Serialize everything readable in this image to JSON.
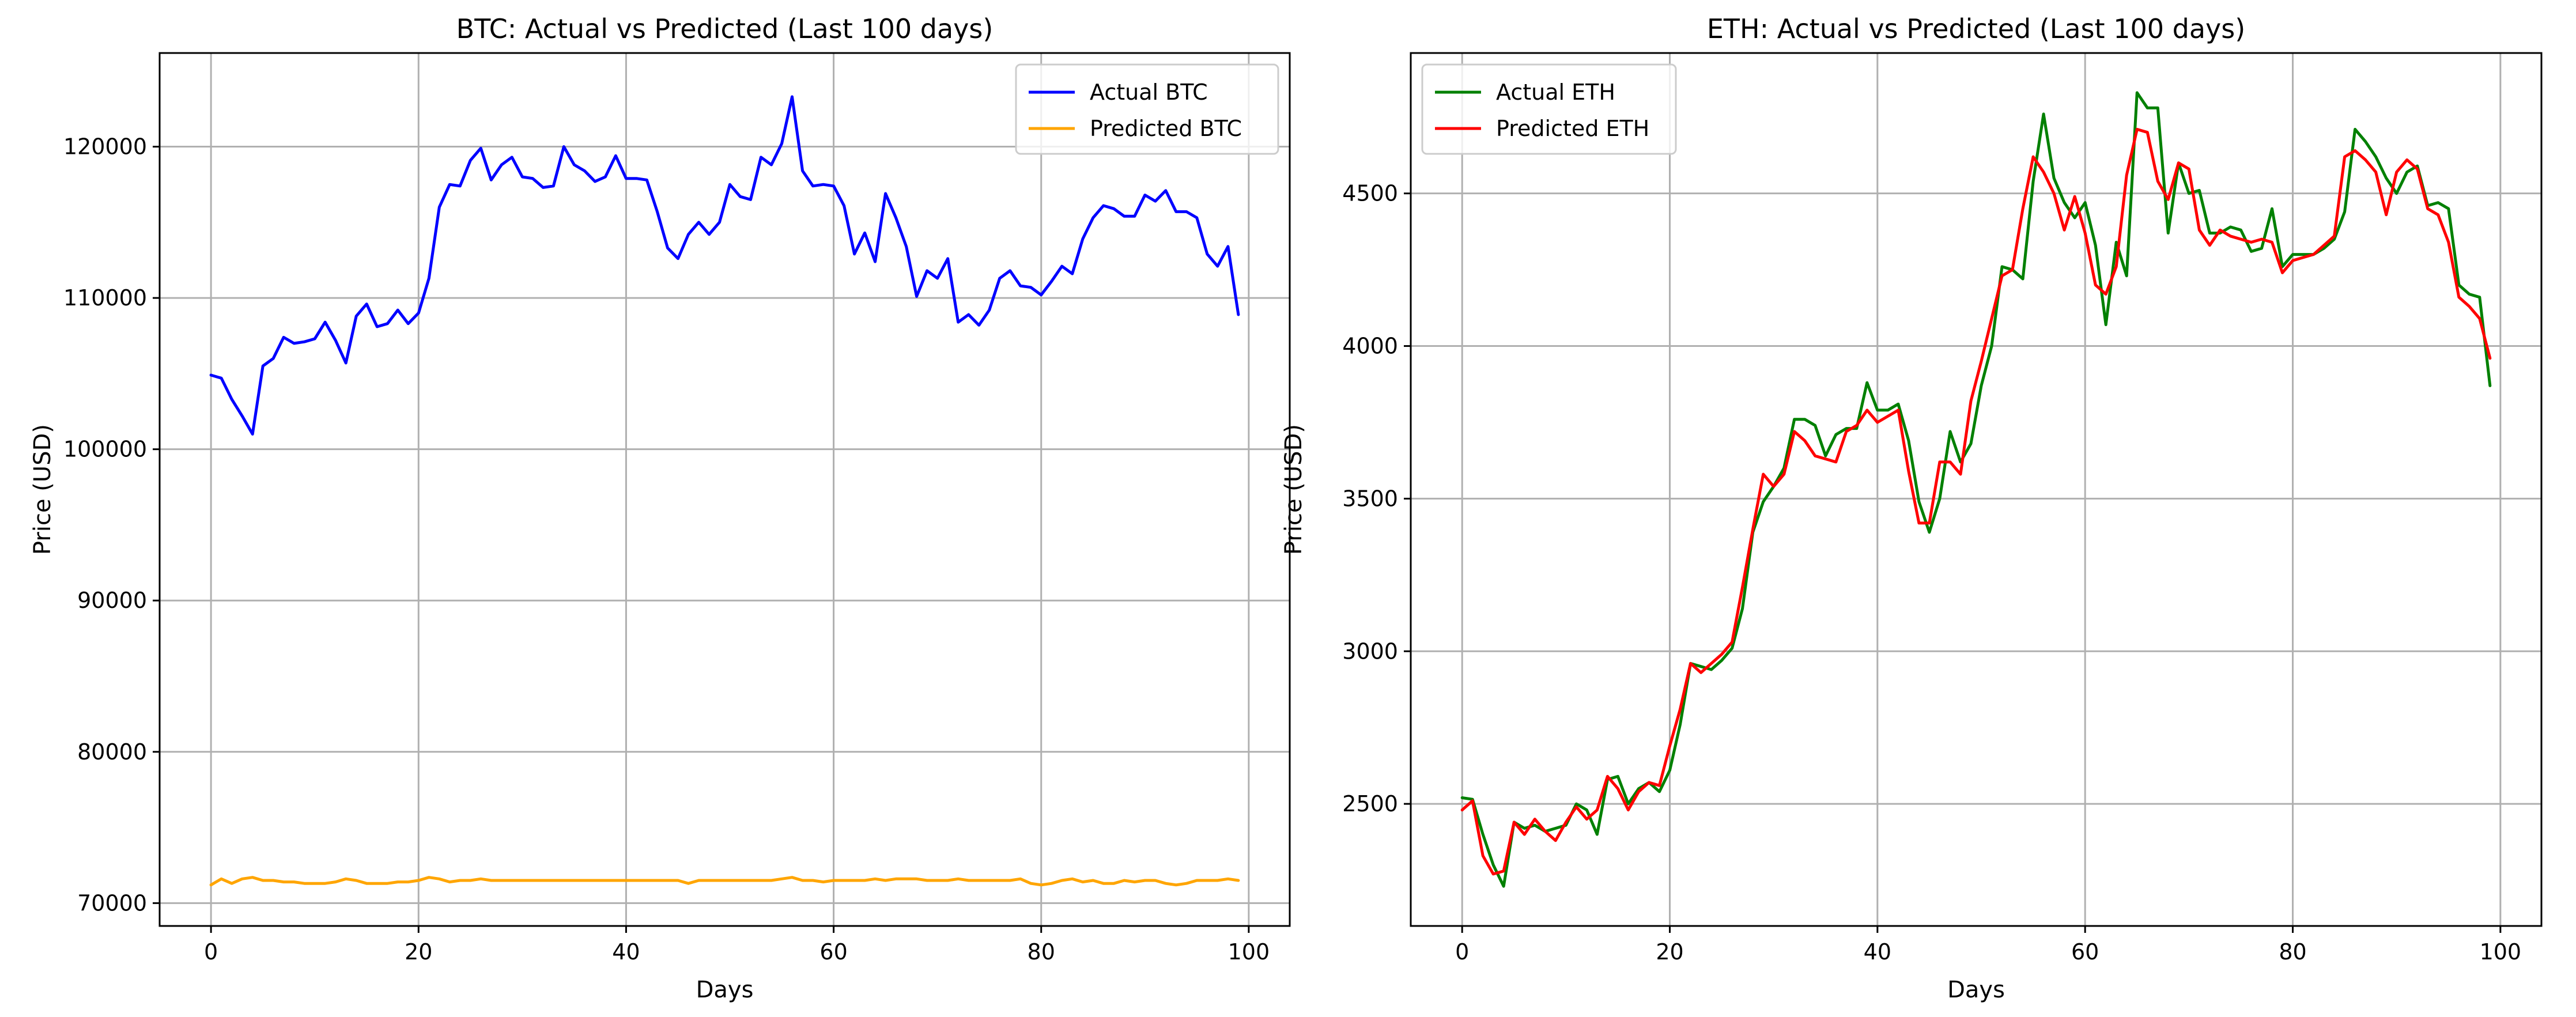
{
  "chart_data": [
    {
      "type": "line",
      "title": "BTC: Actual vs Predicted (Last 100 days)",
      "xlabel": "Days",
      "ylabel": "Price (USD)",
      "xlim": [
        -4.95,
        103.95
      ],
      "ylim": [
        68490,
        126190
      ],
      "xticks": [
        0,
        20,
        40,
        60,
        80,
        100
      ],
      "yticks": [
        70000,
        80000,
        90000,
        100000,
        110000,
        120000
      ],
      "grid": true,
      "legend": "top-right",
      "x": [
        0,
        1,
        2,
        3,
        4,
        5,
        6,
        7,
        8,
        9,
        10,
        11,
        12,
        13,
        14,
        15,
        16,
        17,
        18,
        19,
        20,
        21,
        22,
        23,
        24,
        25,
        26,
        27,
        28,
        29,
        30,
        31,
        32,
        33,
        34,
        35,
        36,
        37,
        38,
        39,
        40,
        41,
        42,
        43,
        44,
        45,
        46,
        47,
        48,
        49,
        50,
        51,
        52,
        53,
        54,
        55,
        56,
        57,
        58,
        59,
        60,
        61,
        62,
        63,
        64,
        65,
        66,
        67,
        68,
        69,
        70,
        71,
        72,
        73,
        74,
        75,
        76,
        77,
        78,
        79,
        80,
        81,
        82,
        83,
        84,
        85,
        86,
        87,
        88,
        89,
        90,
        91,
        92,
        93,
        94,
        95,
        96,
        97,
        98,
        99
      ],
      "series": [
        {
          "name": "Actual BTC",
          "color": "#0000ff",
          "values": [
            104900,
            104700,
            103300,
            102200,
            101000,
            105500,
            106000,
            107400,
            107000,
            107100,
            107300,
            108400,
            107200,
            105700,
            108800,
            109600,
            108100,
            108300,
            109200,
            108300,
            109000,
            111300,
            116000,
            117500,
            117400,
            119100,
            119900,
            117800,
            118800,
            119300,
            118000,
            117900,
            117300,
            117400,
            120000,
            118800,
            118400,
            117700,
            118000,
            119400,
            117900,
            117900,
            117800,
            115700,
            113300,
            112600,
            114200,
            115000,
            114200,
            115000,
            117500,
            116700,
            116500,
            119300,
            118800,
            120200,
            123300,
            118400,
            117400,
            117500,
            117400,
            116100,
            112900,
            114300,
            112400,
            116900,
            115300,
            113400,
            110100,
            111800,
            111300,
            112600,
            108400,
            108900,
            108200,
            109200,
            111300,
            111800,
            110800,
            110700,
            110200,
            111100,
            112100,
            111600,
            113900,
            115300,
            116100,
            115900,
            115400,
            115400,
            116800,
            116400,
            117100,
            115700,
            115700,
            115300,
            112900,
            112100,
            113400,
            108900
          ]
        },
        {
          "name": "Predicted BTC",
          "color": "#ffa500",
          "values": [
            71200,
            71600,
            71300,
            71600,
            71700,
            71500,
            71500,
            71400,
            71400,
            71300,
            71300,
            71300,
            71400,
            71600,
            71500,
            71300,
            71300,
            71300,
            71400,
            71400,
            71500,
            71700,
            71600,
            71400,
            71500,
            71500,
            71600,
            71500,
            71500,
            71500,
            71500,
            71500,
            71500,
            71500,
            71500,
            71500,
            71500,
            71500,
            71500,
            71500,
            71500,
            71500,
            71500,
            71500,
            71500,
            71500,
            71300,
            71500,
            71500,
            71500,
            71500,
            71500,
            71500,
            71500,
            71500,
            71600,
            71700,
            71500,
            71500,
            71400,
            71500,
            71500,
            71500,
            71500,
            71600,
            71500,
            71600,
            71600,
            71600,
            71500,
            71500,
            71500,
            71600,
            71500,
            71500,
            71500,
            71500,
            71500,
            71600,
            71300,
            71200,
            71300,
            71500,
            71600,
            71400,
            71500,
            71300,
            71300,
            71500,
            71400,
            71500,
            71500,
            71300,
            71200,
            71300,
            71500,
            71500,
            71500,
            71600,
            71500
          ]
        }
      ]
    },
    {
      "type": "line",
      "title": "ETH: Actual vs Predicted (Last 100 days)",
      "xlabel": "Days",
      "ylabel": "Price (USD)",
      "xlim": [
        -4.95,
        103.95
      ],
      "ylim": [
        2100,
        4960
      ],
      "xticks": [
        0,
        20,
        40,
        60,
        80,
        100
      ],
      "yticks": [
        2500,
        3000,
        3500,
        4000,
        4500
      ],
      "grid": true,
      "legend": "top-left",
      "x": [
        0,
        1,
        2,
        3,
        4,
        5,
        6,
        7,
        8,
        9,
        10,
        11,
        12,
        13,
        14,
        15,
        16,
        17,
        18,
        19,
        20,
        21,
        22,
        23,
        24,
        25,
        26,
        27,
        28,
        29,
        30,
        31,
        32,
        33,
        34,
        35,
        36,
        37,
        38,
        39,
        40,
        41,
        42,
        43,
        44,
        45,
        46,
        47,
        48,
        49,
        50,
        51,
        52,
        53,
        54,
        55,
        56,
        57,
        58,
        59,
        60,
        61,
        62,
        63,
        64,
        65,
        66,
        67,
        68,
        69,
        70,
        71,
        72,
        73,
        74,
        75,
        76,
        77,
        78,
        79,
        80,
        81,
        82,
        83,
        84,
        85,
        86,
        87,
        88,
        89,
        90,
        91,
        92,
        93,
        94,
        95,
        96,
        97,
        98,
        99
      ],
      "series": [
        {
          "name": "Actual ETH",
          "color": "#008000",
          "values": [
            2520,
            2515,
            2400,
            2300,
            2230,
            2440,
            2420,
            2430,
            2410,
            2420,
            2430,
            2500,
            2480,
            2400,
            2580,
            2590,
            2500,
            2550,
            2570,
            2540,
            2610,
            2760,
            2960,
            2950,
            2940,
            2970,
            3010,
            3140,
            3390,
            3490,
            3540,
            3600,
            3760,
            3760,
            3740,
            3640,
            3710,
            3730,
            3730,
            3880,
            3790,
            3790,
            3810,
            3690,
            3490,
            3390,
            3500,
            3720,
            3620,
            3680,
            3870,
            4000,
            4260,
            4250,
            4220,
            4540,
            4760,
            4550,
            4470,
            4420,
            4470,
            4330,
            4070,
            4340,
            4230,
            4830,
            4780,
            4780,
            4370,
            4600,
            4500,
            4510,
            4370,
            4370,
            4390,
            4380,
            4310,
            4320,
            4450,
            4260,
            4300,
            4300,
            4300,
            4320,
            4350,
            4440,
            4710,
            4670,
            4620,
            4550,
            4500,
            4570,
            4590,
            4460,
            4470,
            4450,
            4200,
            4170,
            4160,
            3870
          ]
        },
        {
          "name": "Predicted ETH",
          "color": "#ff0000",
          "values": [
            2480,
            2510,
            2330,
            2270,
            2280,
            2440,
            2400,
            2450,
            2410,
            2380,
            2440,
            2490,
            2450,
            2480,
            2590,
            2550,
            2480,
            2540,
            2570,
            2560,
            2690,
            2810,
            2960,
            2930,
            2960,
            2990,
            3030,
            3210,
            3400,
            3580,
            3540,
            3580,
            3720,
            3690,
            3640,
            3630,
            3620,
            3720,
            3740,
            3790,
            3750,
            3770,
            3790,
            3590,
            3420,
            3420,
            3620,
            3620,
            3580,
            3820,
            3950,
            4090,
            4230,
            4250,
            4450,
            4620,
            4570,
            4500,
            4380,
            4490,
            4370,
            4200,
            4170,
            4260,
            4560,
            4710,
            4700,
            4540,
            4480,
            4600,
            4580,
            4380,
            4330,
            4380,
            4360,
            4350,
            4340,
            4350,
            4340,
            4240,
            4280,
            4290,
            4300,
            4330,
            4360,
            4620,
            4640,
            4610,
            4570,
            4430,
            4570,
            4610,
            4580,
            4450,
            4430,
            4340,
            4160,
            4130,
            4090,
            3960
          ]
        }
      ]
    }
  ]
}
